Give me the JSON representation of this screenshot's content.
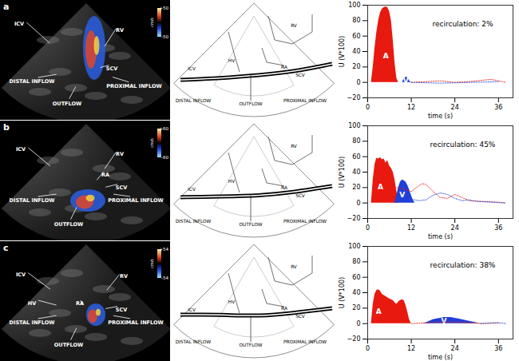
{
  "figure_rows": [
    {
      "panel": "a",
      "image": {
        "labels": [
          "ICV",
          "RV",
          "SCV",
          "DISTAL INFLOW",
          "OUTFLOW",
          "PROXIMAL INFLOW"
        ],
        "color_bar": {
          "label": "cm/s",
          "ticks": [
            {
              "value": 50,
              "label": "+50"
            },
            {
              "value": -50,
              "label": "-50"
            }
          ]
        }
      },
      "diagram": {
        "labels": [
          "ICV",
          "HV",
          "RA",
          "RV",
          "SCV",
          "DISTAL INFLOW",
          "OUTFLOW",
          "PROXIMAL INFLOW"
        ]
      }
    },
    {
      "panel": "b",
      "image": {
        "labels": [
          "ICV",
          "RV",
          "RA",
          "SCV",
          "DISTAL INFLOW",
          "OUTFLOW",
          "PROXIMAL INFLOW"
        ],
        "color_bar": {
          "label": "cm/s",
          "ticks": [
            {
              "value": 60,
              "label": "+60"
            },
            {
              "value": -60,
              "label": "-60"
            }
          ]
        }
      },
      "diagram": {
        "labels": [
          "ICV",
          "HV",
          "RA",
          "RV",
          "SCV",
          "DISTAL INFLOW",
          "OUTFLOW",
          "PROXIMAL INFLOW"
        ]
      }
    },
    {
      "panel": "c",
      "image": {
        "labels": [
          "ICV",
          "HV",
          "RV",
          "RA",
          "SCV",
          "DISTAL INFLOW",
          "OUTFLOW",
          "PROXIMAL INFLOW"
        ],
        "color_bar": {
          "label": "cm/s",
          "ticks": [
            {
              "value": 54,
              "label": "+54"
            },
            {
              "value": -54,
              "label": "-54"
            }
          ]
        }
      },
      "diagram": {
        "labels": [
          "ICV",
          "HV",
          "RA",
          "RV",
          "SCV",
          "DISTAL INFLOW",
          "OUTFLOW",
          "PROXIMAL INFLOW"
        ]
      }
    }
  ],
  "chart_data": [
    {
      "type": "area",
      "annotation": "recirculation: 2%",
      "xlabel": "time (s)",
      "ylabel": "U (V*100)",
      "xlim": [
        0,
        40
      ],
      "ylim": [
        -20,
        100
      ],
      "xticks": [
        0,
        12,
        24,
        36
      ],
      "yticks": [
        -20,
        0,
        20,
        40,
        60,
        80,
        100
      ],
      "series": [
        {
          "name": "A",
          "type": "area",
          "color": "#e8190f",
          "x": [
            1,
            1.5,
            2,
            2.5,
            3,
            3.5,
            4,
            4.5,
            5,
            5.5,
            6,
            6.5,
            7,
            7.5,
            8,
            8.5
          ],
          "values": [
            0,
            20,
            45,
            65,
            80,
            90,
            95,
            97,
            98,
            97,
            92,
            80,
            55,
            25,
            5,
            0
          ]
        },
        {
          "name": "V",
          "type": "area",
          "color": "#1f3fd8",
          "x": [
            9.5,
            10,
            10.5,
            11,
            11.5,
            12
          ],
          "values": [
            0,
            4,
            7,
            6,
            2,
            0
          ]
        },
        {
          "type": "line",
          "line_style": "dotted",
          "color": "#e8190f",
          "x": [
            12,
            16,
            20,
            24,
            28,
            32,
            34,
            36,
            38
          ],
          "values": [
            0,
            1,
            2,
            0,
            1,
            3,
            4,
            2,
            0
          ]
        },
        {
          "type": "line",
          "line_style": "dotted",
          "color": "#1f3fd8",
          "x": [
            12,
            20,
            28,
            36
          ],
          "values": [
            0,
            -1,
            0,
            1
          ]
        }
      ]
    },
    {
      "type": "area",
      "annotation": "recirculation: 45%",
      "xlabel": "time (s)",
      "ylabel": "U (V*100)",
      "xlim": [
        0,
        40
      ],
      "ylim": [
        -20,
        100
      ],
      "xticks": [
        0,
        12,
        24,
        36
      ],
      "yticks": [
        -20,
        0,
        20,
        40,
        60,
        80,
        100
      ],
      "series": [
        {
          "name": "A",
          "type": "area",
          "color": "#e8190f",
          "x": [
            1,
            1.5,
            2,
            2.5,
            3,
            3.5,
            4,
            4.5,
            5,
            5.5,
            6,
            6.5,
            7,
            7.5,
            8,
            8.5
          ],
          "values": [
            0,
            30,
            50,
            58,
            57,
            59,
            56,
            57,
            52,
            55,
            48,
            45,
            40,
            30,
            15,
            2
          ]
        },
        {
          "name": "V",
          "type": "area",
          "color": "#1f3fd8",
          "x": [
            7.5,
            8,
            8.5,
            9,
            9.5,
            10,
            10.5,
            11,
            11.5,
            12,
            12.5,
            13
          ],
          "values": [
            0,
            10,
            20,
            27,
            30,
            29,
            27,
            23,
            17,
            10,
            4,
            0
          ]
        },
        {
          "type": "line",
          "line_style": "dotted",
          "color": "#e8190f",
          "x": [
            8,
            10,
            12,
            14,
            15,
            16,
            18,
            20,
            22,
            24,
            26,
            28,
            32,
            36,
            38
          ],
          "values": [
            20,
            18,
            15,
            22,
            25,
            24,
            15,
            7,
            6,
            11,
            7,
            3,
            2,
            1,
            0
          ]
        },
        {
          "type": "line",
          "line_style": "dotted",
          "color": "#1f3fd8",
          "x": [
            12,
            14,
            16,
            18,
            20,
            22,
            24,
            26,
            28,
            30,
            34,
            38
          ],
          "values": [
            5,
            3,
            4,
            10,
            13,
            11,
            6,
            3,
            4,
            2,
            1,
            0
          ]
        }
      ]
    },
    {
      "type": "area",
      "annotation": "recirculation: 38%",
      "xlabel": "time (s)",
      "ylabel": "U (V*100)",
      "xlim": [
        0,
        40
      ],
      "ylim": [
        -20,
        100
      ],
      "xticks": [
        0,
        12,
        24,
        36
      ],
      "yticks": [
        -20,
        0,
        20,
        40,
        60,
        80,
        100
      ],
      "series": [
        {
          "name": "A",
          "type": "area",
          "color": "#e8190f",
          "x": [
            1,
            1.5,
            2,
            2.5,
            3,
            3.5,
            4,
            5,
            6,
            7,
            7.5,
            8,
            8.5,
            9,
            9.5,
            10,
            10.5,
            11,
            11.5,
            12
          ],
          "values": [
            0,
            25,
            38,
            43,
            44,
            42,
            38,
            35,
            32,
            30,
            27,
            25,
            28,
            30,
            31,
            30,
            24,
            15,
            5,
            0
          ]
        },
        {
          "name": "V",
          "type": "area",
          "color": "#1f3fd8",
          "x": [
            15,
            16,
            17,
            18,
            19,
            20,
            21,
            22,
            23,
            24,
            25,
            26,
            27,
            28,
            29,
            30,
            31
          ],
          "values": [
            0,
            1,
            3,
            5,
            6,
            7,
            8,
            8,
            8,
            7,
            6,
            5,
            4,
            3,
            2,
            1,
            0
          ]
        },
        {
          "type": "line",
          "line_style": "dotted",
          "color": "#e8190f",
          "x": [
            12,
            16,
            20,
            24,
            28,
            32,
            36
          ],
          "values": [
            0,
            1,
            2,
            2,
            1,
            0,
            1
          ]
        },
        {
          "type": "line",
          "line_style": "dotted",
          "color": "#1f3fd8",
          "x": [
            31,
            34,
            36,
            38
          ],
          "values": [
            0,
            1,
            1,
            0
          ]
        }
      ]
    }
  ]
}
